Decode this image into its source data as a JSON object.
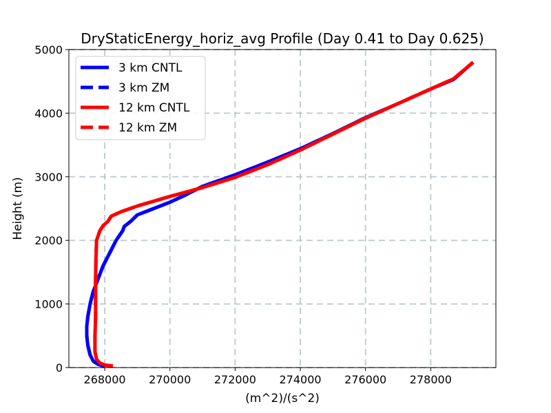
{
  "chart_data": {
    "type": "line",
    "title": "DryStaticEnergy_horiz_avg Profile (Day 0.41 to Day 0.625)",
    "xlabel": "(m^2)/(s^2)",
    "ylabel": "Height (m)",
    "xlim": [
      266900,
      280000
    ],
    "ylim": [
      0,
      5000
    ],
    "xticks": [
      268000,
      270000,
      272000,
      274000,
      276000,
      278000
    ],
    "yticks": [
      0,
      1000,
      2000,
      3000,
      4000,
      5000
    ],
    "grid": true,
    "legend_position": "top-left",
    "series": [
      {
        "name": "3 km CNTL",
        "color": "#0000ff",
        "dash": "solid",
        "points": [
          [
            268000,
            25
          ],
          [
            267800,
            50
          ],
          [
            267650,
            100
          ],
          [
            267550,
            200
          ],
          [
            267480,
            350
          ],
          [
            267450,
            500
          ],
          [
            267450,
            650
          ],
          [
            267480,
            800
          ],
          [
            267550,
            1000
          ],
          [
            267650,
            1200
          ],
          [
            267800,
            1400
          ],
          [
            267950,
            1600
          ],
          [
            268150,
            1800
          ],
          [
            268350,
            2000
          ],
          [
            268550,
            2150
          ],
          [
            268600,
            2220
          ],
          [
            268800,
            2300
          ],
          [
            269000,
            2400
          ],
          [
            269500,
            2500
          ],
          [
            270000,
            2600
          ],
          [
            270500,
            2720
          ],
          [
            271000,
            2850
          ],
          [
            272000,
            3030
          ],
          [
            273000,
            3230
          ],
          [
            274000,
            3440
          ],
          [
            275000,
            3680
          ],
          [
            276000,
            3930
          ],
          [
            277000,
            4150
          ],
          [
            278000,
            4380
          ],
          [
            278700,
            4530
          ],
          [
            279300,
            4800
          ]
        ]
      },
      {
        "name": "3 km ZM",
        "color": "#0000ff",
        "dash": "dashed",
        "points": [
          [
            268000,
            25
          ],
          [
            267800,
            50
          ],
          [
            267650,
            100
          ],
          [
            267550,
            200
          ],
          [
            267480,
            350
          ],
          [
            267450,
            500
          ],
          [
            267450,
            650
          ],
          [
            267480,
            800
          ],
          [
            267550,
            1000
          ],
          [
            267650,
            1200
          ],
          [
            267800,
            1400
          ],
          [
            267950,
            1600
          ],
          [
            268150,
            1800
          ],
          [
            268350,
            2000
          ],
          [
            268550,
            2150
          ],
          [
            268600,
            2220
          ],
          [
            268800,
            2300
          ],
          [
            269000,
            2400
          ],
          [
            269500,
            2500
          ],
          [
            270000,
            2600
          ],
          [
            270500,
            2720
          ],
          [
            271000,
            2850
          ],
          [
            272000,
            3030
          ],
          [
            273000,
            3230
          ],
          [
            274000,
            3440
          ],
          [
            275000,
            3680
          ],
          [
            276000,
            3930
          ],
          [
            277000,
            4150
          ],
          [
            278000,
            4380
          ],
          [
            278700,
            4530
          ],
          [
            279300,
            4800
          ]
        ]
      },
      {
        "name": "12 km CNTL",
        "color": "#ff0000",
        "dash": "solid",
        "points": [
          [
            268250,
            25
          ],
          [
            268000,
            40
          ],
          [
            267850,
            70
          ],
          [
            267750,
            130
          ],
          [
            267700,
            250
          ],
          [
            267700,
            500
          ],
          [
            267720,
            800
          ],
          [
            267720,
            1100
          ],
          [
            267720,
            1400
          ],
          [
            267730,
            1700
          ],
          [
            267750,
            2000
          ],
          [
            267850,
            2150
          ],
          [
            267950,
            2230
          ],
          [
            268100,
            2300
          ],
          [
            268200,
            2380
          ],
          [
            268500,
            2450
          ],
          [
            269000,
            2540
          ],
          [
            270000,
            2690
          ],
          [
            271000,
            2830
          ],
          [
            272000,
            2990
          ],
          [
            273000,
            3190
          ],
          [
            274000,
            3420
          ],
          [
            275000,
            3670
          ],
          [
            276000,
            3920
          ],
          [
            277000,
            4150
          ],
          [
            278000,
            4380
          ],
          [
            278700,
            4540
          ],
          [
            279300,
            4800
          ]
        ]
      },
      {
        "name": "12 km ZM",
        "color": "#ff0000",
        "dash": "dashed",
        "points": [
          [
            268250,
            25
          ],
          [
            268000,
            40
          ],
          [
            267850,
            70
          ],
          [
            267750,
            130
          ],
          [
            267700,
            250
          ],
          [
            267700,
            500
          ],
          [
            267720,
            800
          ],
          [
            267720,
            1100
          ],
          [
            267720,
            1400
          ],
          [
            267730,
            1700
          ],
          [
            267750,
            2000
          ],
          [
            267850,
            2150
          ],
          [
            267950,
            2230
          ],
          [
            268100,
            2300
          ],
          [
            268200,
            2380
          ],
          [
            268500,
            2450
          ],
          [
            269000,
            2540
          ],
          [
            270000,
            2690
          ],
          [
            271000,
            2830
          ],
          [
            272000,
            2990
          ],
          [
            273000,
            3190
          ],
          [
            274000,
            3420
          ],
          [
            275000,
            3670
          ],
          [
            276000,
            3920
          ],
          [
            277000,
            4150
          ],
          [
            278000,
            4380
          ],
          [
            278700,
            4540
          ],
          [
            279300,
            4800
          ]
        ]
      }
    ]
  }
}
